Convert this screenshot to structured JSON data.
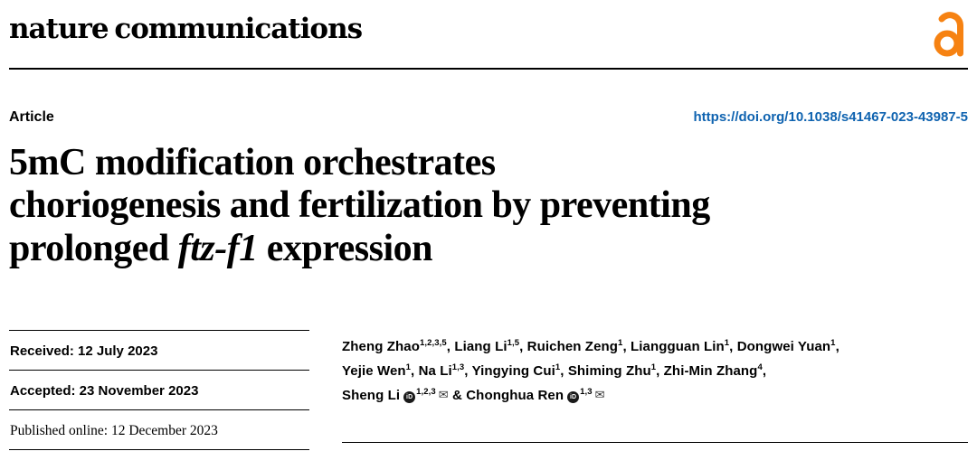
{
  "journal": {
    "name": "nature communications"
  },
  "article": {
    "type_label": "Article",
    "doi": "https://doi.org/10.1038/s41467-023-43987-5",
    "title": {
      "line1": "5mC modification orchestrates",
      "line2": "choriogenesis and fertilization by preventing",
      "line3_pre": "prolonged ",
      "line3_italic": "ftz-f1",
      "line3_post": " expression"
    }
  },
  "dates": {
    "received": "Received: 12 July 2023",
    "accepted": "Accepted: 23 November 2023",
    "published": "Published online: 12 December 2023"
  },
  "icons": {
    "open_access": "open-access-lock",
    "orcid_label": "iD",
    "email_glyph": "✉"
  },
  "colors": {
    "doi_blue": "#0f63b0",
    "open_access_orange": "#f68212",
    "text": "#000000"
  },
  "authors": {
    "list": [
      {
        "name": "Zheng Zhao",
        "sup": "1,2,3,5",
        "sep": ", "
      },
      {
        "name": "Liang Li",
        "sup": "1,5",
        "sep": ", "
      },
      {
        "name": "Ruichen Zeng",
        "sup": "1",
        "sep": ", "
      },
      {
        "name": "Liangguan Lin",
        "sup": "1",
        "sep": ", "
      },
      {
        "name": "Dongwei Yuan",
        "sup": "1",
        "sep": ",",
        "break_after": true
      },
      {
        "name": "Yejie Wen",
        "sup": "1",
        "sep": ", "
      },
      {
        "name": "Na Li",
        "sup": "1,3",
        "sep": ", "
      },
      {
        "name": "Yingying Cui",
        "sup": "1",
        "sep": ", "
      },
      {
        "name": "Shiming Zhu",
        "sup": "1",
        "sep": ", "
      },
      {
        "name": "Zhi-Min Zhang",
        "sup": "4",
        "sep": ",",
        "break_after": true
      },
      {
        "name": "Sheng Li",
        "sup": "1,2,3",
        "orcid": true,
        "email": true,
        "sep": " & "
      },
      {
        "name": "Chonghua Ren",
        "sup": "1,3",
        "orcid": true,
        "email": true,
        "sep": ""
      }
    ]
  }
}
